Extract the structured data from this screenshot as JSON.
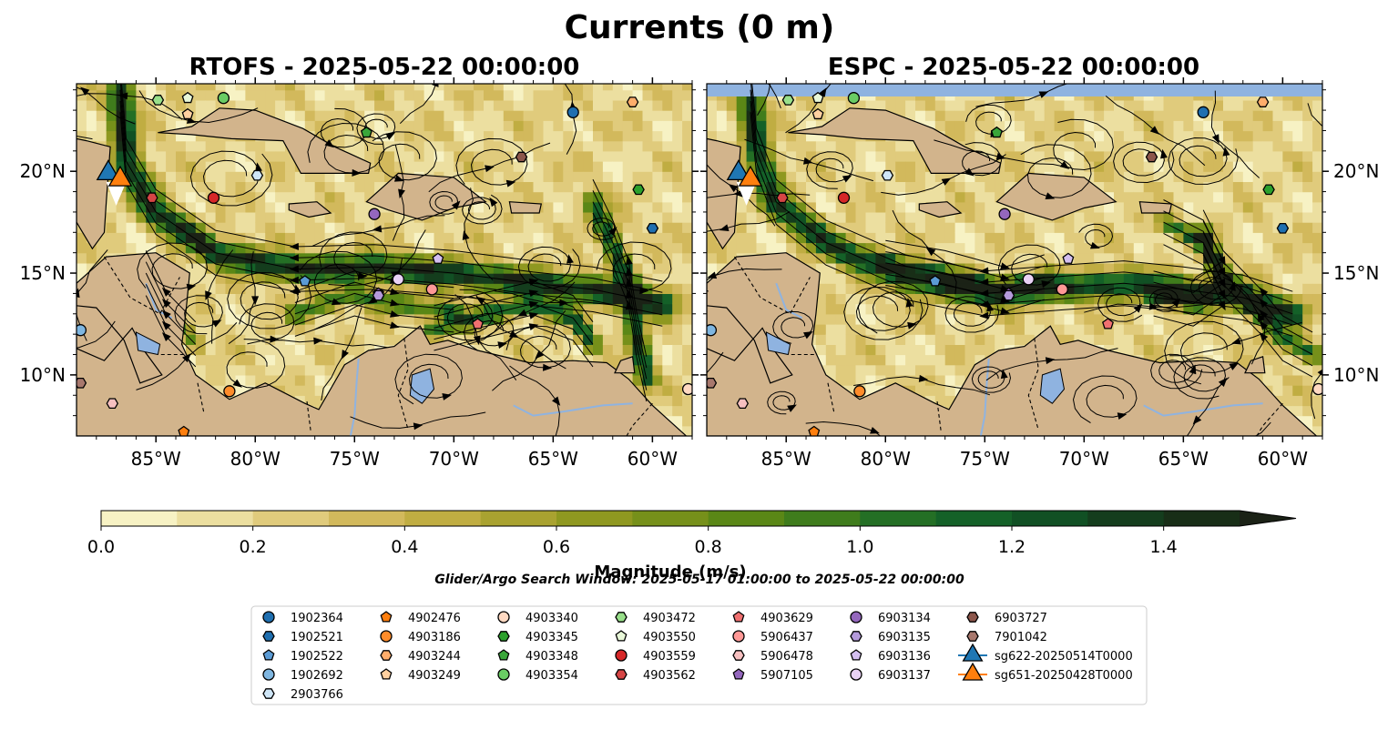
{
  "chart_data": {
    "type": "map",
    "title": "Currents (0 m)",
    "panels": [
      {
        "title": "RTOFS - 2025-05-22 00:00:00"
      },
      {
        "title": "ESPC - 2025-05-22 00:00:00"
      }
    ],
    "lon_range": [
      -89.0,
      -58.0
    ],
    "lat_range": [
      7.0,
      24.3
    ],
    "lon_ticks": [
      "85°W",
      "80°W",
      "75°W",
      "70°W",
      "65°W",
      "60°W"
    ],
    "lat_ticks": [
      "20°N",
      "15°N",
      "10°N"
    ],
    "colorbar": {
      "label": "Magnitude (m/s)",
      "min": 0.0,
      "max": 1.5,
      "extend": "max",
      "ticks": [
        "0.0",
        "0.2",
        "0.4",
        "0.6",
        "0.8",
        "1.0",
        "1.2",
        "1.4"
      ],
      "levels": 15
    },
    "search_window": "Glider/Argo Search Window: 2025-05-17 01:00:00 to 2025-05-22 00:00:00",
    "floats": [
      {
        "id": "1902364",
        "marker": "circle",
        "color": "#1f6fb0",
        "lon": -64.0,
        "lat": 22.9
      },
      {
        "id": "1902521",
        "marker": "hexagon",
        "color": "#1f6fb0",
        "lon": -60.0,
        "lat": 17.2
      },
      {
        "id": "1902522",
        "marker": "pentagon",
        "color": "#5b9bd5",
        "lon": -77.5,
        "lat": 14.6
      },
      {
        "id": "1902692",
        "marker": "circle",
        "color": "#7fb6e0",
        "lon": -88.8,
        "lat": 12.2
      },
      {
        "id": "2903766",
        "marker": "hexagon",
        "color": "#cfe6f7",
        "lon": -79.9,
        "lat": 19.8
      },
      {
        "id": "4902476",
        "marker": "pentagon",
        "color": "#ff7f0e",
        "lon": -83.6,
        "lat": 7.2
      },
      {
        "id": "4903186",
        "marker": "circle",
        "color": "#ff8c2a",
        "lon": -81.3,
        "lat": 9.2
      },
      {
        "id": "4903244",
        "marker": "hexagon",
        "color": "#ffad6b",
        "lon": -61.0,
        "lat": 23.4
      },
      {
        "id": "4903249",
        "marker": "pentagon",
        "color": "#ffd0a0",
        "lon": -83.4,
        "lat": 22.8
      },
      {
        "id": "4903340",
        "marker": "circle",
        "color": "#ffd9c2",
        "lon": -58.2,
        "lat": 9.3
      },
      {
        "id": "4903345",
        "marker": "hexagon",
        "color": "#2ca02c",
        "lon": -60.7,
        "lat": 19.1
      },
      {
        "id": "4903348",
        "marker": "pentagon",
        "color": "#3aa63a",
        "lon": -74.4,
        "lat": 21.9
      },
      {
        "id": "4903354",
        "marker": "circle",
        "color": "#6acc64",
        "lon": -81.6,
        "lat": 23.6
      },
      {
        "id": "4903472",
        "marker": "hexagon",
        "color": "#98df8a",
        "lon": -84.9,
        "lat": 23.5
      },
      {
        "id": "4903550",
        "marker": "pentagon",
        "color": "#e8f7d8",
        "lon": -83.4,
        "lat": 23.6
      },
      {
        "id": "4903559",
        "marker": "circle",
        "color": "#d62728",
        "lon": -82.1,
        "lat": 18.7
      },
      {
        "id": "4903562",
        "marker": "hexagon",
        "color": "#d64545",
        "lon": -85.2,
        "lat": 18.7
      },
      {
        "id": "4903629",
        "marker": "pentagon",
        "color": "#f07070",
        "lon": -68.8,
        "lat": 12.5
      },
      {
        "id": "5906437",
        "marker": "circle",
        "color": "#ff9896",
        "lon": -71.1,
        "lat": 14.2
      },
      {
        "id": "5906478",
        "marker": "hexagon",
        "color": "#f7c0c0",
        "lon": -87.2,
        "lat": 8.6
      },
      {
        "id": "5907105",
        "marker": "pentagon",
        "color": "#9467bd",
        "lon": -73.8,
        "lat": 14.0
      },
      {
        "id": "6903134",
        "marker": "circle",
        "color": "#9467bd",
        "lon": -74.0,
        "lat": 17.9
      },
      {
        "id": "6903135",
        "marker": "hexagon",
        "color": "#b49adb",
        "lon": -73.8,
        "lat": 13.9
      },
      {
        "id": "6903136",
        "marker": "pentagon",
        "color": "#d4bff0",
        "lon": -70.8,
        "lat": 15.7
      },
      {
        "id": "6903137",
        "marker": "circle",
        "color": "#e9d2f5",
        "lon": -72.8,
        "lat": 14.7
      },
      {
        "id": "6903727",
        "marker": "hexagon",
        "color": "#8c564b",
        "lon": -66.6,
        "lat": 20.7
      },
      {
        "id": "7901042",
        "marker": "hexagon",
        "color": "#a8786d",
        "lon": -88.8,
        "lat": 9.6
      }
    ],
    "gliders": [
      {
        "id": "sg622-20250514T0000",
        "marker": "triangle",
        "color": "#1f77b4",
        "lon": -87.4,
        "lat": 19.9
      },
      {
        "id": "sg651-20250428T0000",
        "marker": "triangle",
        "color": "#ff7f0e",
        "lon": -86.8,
        "lat": 19.6
      }
    ]
  },
  "colors": {
    "land": "#d2b48c",
    "water_body": "#8fb3e0",
    "rivers": "#8fb3e0",
    "espc_nodata_band": "#8fb3e0",
    "streamline": "#000000",
    "colormap": [
      "#f7f2c4",
      "#ecdfa0",
      "#e0cb7c",
      "#d2b95c",
      "#c0ad42",
      "#a9a230",
      "#8f9820",
      "#76901a",
      "#5a8716",
      "#3f7c1c",
      "#246f25",
      "#146128",
      "#115024",
      "#143d1d",
      "#182e17",
      "#1b2216"
    ]
  }
}
